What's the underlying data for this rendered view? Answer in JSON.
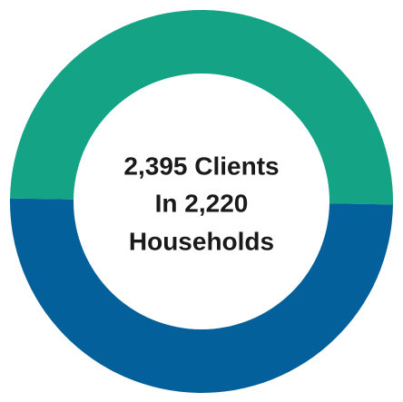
{
  "chart_data": {
    "type": "donut",
    "values": [
      50,
      50
    ],
    "colors": [
      "#15a386",
      "#03609a"
    ],
    "center_text": [
      "2,395 Clients",
      "In 2,220",
      "Households"
    ]
  }
}
